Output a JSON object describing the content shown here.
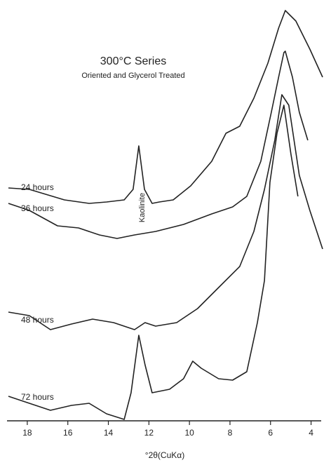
{
  "chart_data": {
    "type": "line",
    "title": "300°C Series",
    "subtitle": "Oriented and Glycerol Treated",
    "x_label": "°2θ(CuKα)",
    "annotation": "Kaolinite",
    "xlim": [
      19,
      3.5
    ],
    "xticks": [
      18,
      16,
      14,
      12,
      10,
      8,
      6,
      4
    ],
    "series": [
      {
        "name": "24 hours",
        "color": "#222222",
        "x": [
          18.93,
          17.9,
          16.17,
          14.95,
          14.09,
          13.22,
          12.78,
          12.5,
          12.22,
          11.84,
          11.49,
          10.8,
          9.94,
          8.9,
          8.2,
          7.52,
          6.82,
          6.13,
          5.6,
          5.27,
          4.75,
          4.06,
          3.43
        ],
        "values": [
          332,
          330,
          315,
          310,
          312,
          315,
          330,
          392,
          330,
          310,
          312,
          315,
          335,
          370,
          410,
          420,
          460,
          510,
          560,
          585,
          570,
          530,
          490
        ]
      },
      {
        "name": "36 hours",
        "color": "#222222",
        "x": [
          18.93,
          17.9,
          16.51,
          15.47,
          14.44,
          13.57,
          12.71,
          11.67,
          10.29,
          8.9,
          7.87,
          7.17,
          6.48,
          5.96,
          5.6,
          5.34,
          5.27,
          4.92,
          4.58,
          4.16
        ],
        "values": [
          310,
          300,
          278,
          275,
          265,
          260,
          265,
          270,
          280,
          295,
          305,
          320,
          370,
          440,
          490,
          525,
          527,
          490,
          440,
          400
        ]
      },
      {
        "name": "48 hours",
        "color": "#222222",
        "x": [
          18.93,
          17.9,
          16.86,
          15.82,
          14.78,
          13.74,
          12.71,
          12.19,
          11.67,
          10.63,
          9.6,
          8.56,
          7.52,
          6.82,
          6.3,
          5.79,
          5.44,
          5.1,
          4.58,
          4.06,
          3.43
        ],
        "values": [
          155,
          150,
          130,
          138,
          145,
          140,
          130,
          140,
          135,
          140,
          160,
          190,
          220,
          270,
          330,
          400,
          465,
          450,
          350,
          300,
          245
        ]
      },
      {
        "name": "72 hours",
        "color": "#222222",
        "x": [
          18.93,
          17.9,
          16.86,
          15.82,
          14.95,
          14.09,
          13.22,
          12.88,
          12.5,
          12.19,
          11.84,
          10.98,
          10.29,
          9.84,
          9.42,
          8.56,
          7.87,
          7.17,
          6.65,
          6.3,
          6.03,
          5.68,
          5.34,
          4.99,
          4.65
        ],
        "values": [
          35,
          25,
          15,
          22,
          25,
          10,
          2,
          40,
          122,
          80,
          40,
          45,
          60,
          85,
          75,
          60,
          58,
          70,
          140,
          200,
          340,
          410,
          450,
          380,
          320
        ]
      }
    ]
  }
}
